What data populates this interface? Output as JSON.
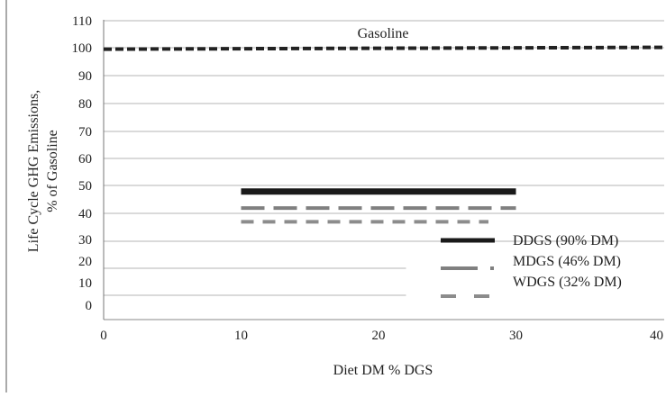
{
  "chart_data": {
    "type": "line",
    "title": "",
    "xlabel": "Diet DM % DGS",
    "ylabel_line1": "Life Cycle GHG Emissions,",
    "ylabel_line2": "% of Gasoline",
    "xlim": [
      0,
      40
    ],
    "x_ticks": [
      "0",
      "10",
      "20",
      "30",
      "40"
    ],
    "y_ticks": [
      "110",
      "100",
      "90",
      "80",
      "70",
      "60",
      "50",
      "40",
      "30",
      "20",
      "10",
      "0"
    ],
    "grid": true,
    "reference_line": {
      "label": "Gasoline",
      "value": 100
    },
    "series": [
      {
        "name": "DDGS (90% DM)",
        "style": "solid",
        "color": "#1a1a1a",
        "x": [
          10,
          30
        ],
        "y": [
          48,
          48
        ]
      },
      {
        "name": "MDGS (46% DM)",
        "style": "dash-dot",
        "color": "#808080",
        "x": [
          10,
          30
        ],
        "y": [
          42,
          42
        ]
      },
      {
        "name": "WDGS (32% DM)",
        "style": "dashed",
        "color": "#8c8c8c",
        "x": [
          10,
          28
        ],
        "y": [
          37,
          37
        ]
      }
    ],
    "legend_position": "bottom-right"
  }
}
